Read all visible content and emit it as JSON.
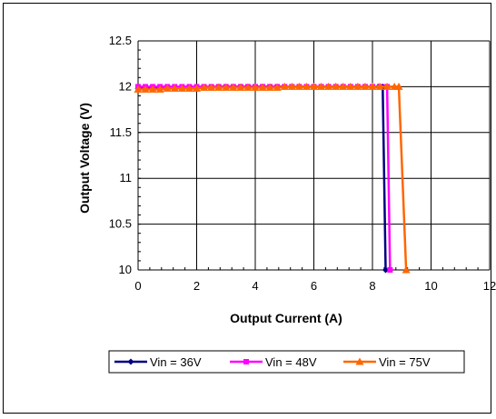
{
  "chart_data": {
    "type": "line",
    "title": "",
    "xlabel": "Output Current (A)",
    "ylabel": "Output Voltage (V)",
    "xlim": [
      0,
      12
    ],
    "ylim": [
      10,
      12.5
    ],
    "xticks": [
      0,
      2,
      4,
      6,
      8,
      10,
      12
    ],
    "yticks": [
      10,
      10.5,
      11,
      11.5,
      12,
      12.5
    ],
    "grid": "vertical and horizontal major gridlines",
    "legend_position": "bottom",
    "series": [
      {
        "name": "Vin = 36V",
        "color": "#000080",
        "marker": "diamond",
        "x": [
          0,
          0.25,
          0.5,
          0.75,
          1,
          1.25,
          1.5,
          1.75,
          2,
          2.25,
          2.5,
          2.75,
          3,
          3.25,
          3.5,
          3.75,
          4,
          4.25,
          4.5,
          4.75,
          5,
          5.25,
          5.5,
          5.75,
          6,
          6.25,
          6.5,
          6.75,
          7,
          7.25,
          7.5,
          7.75,
          8,
          8.2,
          8.35,
          8.45
        ],
        "y": [
          11.98,
          11.98,
          11.98,
          11.98,
          11.99,
          11.99,
          11.99,
          11.99,
          11.99,
          11.99,
          11.99,
          12.0,
          12.0,
          12.0,
          12.0,
          12.0,
          12.0,
          12.0,
          12.0,
          12.0,
          12.0,
          12.0,
          12.0,
          12.0,
          12.0,
          12.0,
          12.0,
          12.0,
          12.0,
          12.0,
          12.0,
          12.0,
          12.0,
          12.0,
          12.0,
          10.0
        ]
      },
      {
        "name": "Vin = 48V",
        "color": "#FF00FF",
        "marker": "square",
        "x": [
          0,
          0.25,
          0.5,
          0.75,
          1,
          1.25,
          1.5,
          1.75,
          2,
          2.25,
          2.5,
          2.75,
          3,
          3.25,
          3.5,
          3.75,
          4,
          4.25,
          4.5,
          4.75,
          5,
          5.25,
          5.5,
          5.75,
          6,
          6.25,
          6.5,
          6.75,
          7,
          7.25,
          7.5,
          7.75,
          8,
          8.25,
          8.5,
          8.6
        ],
        "y": [
          12.0,
          12.0,
          12.0,
          12.0,
          12.0,
          12.0,
          12.0,
          12.0,
          12.0,
          12.0,
          12.0,
          12.0,
          12.0,
          12.0,
          12.0,
          12.0,
          12.0,
          12.0,
          12.0,
          12.0,
          12.0,
          12.0,
          12.0,
          12.0,
          12.0,
          12.0,
          12.0,
          12.0,
          12.0,
          12.0,
          12.0,
          12.0,
          12.0,
          12.0,
          12.0,
          10.0
        ]
      },
      {
        "name": "Vin = 75V",
        "color": "#FF6600",
        "marker": "triangle",
        "x": [
          0,
          0.25,
          0.5,
          0.75,
          1,
          1.25,
          1.5,
          1.75,
          2,
          2.25,
          2.5,
          2.75,
          3,
          3.25,
          3.5,
          3.75,
          4,
          4.25,
          4.5,
          4.75,
          5,
          5.25,
          5.5,
          5.75,
          6,
          6.25,
          6.5,
          6.75,
          7,
          7.25,
          7.5,
          7.75,
          8,
          8.25,
          8.5,
          8.75,
          8.9,
          9.15
        ],
        "y": [
          11.97,
          11.97,
          11.97,
          11.97,
          11.98,
          11.98,
          11.98,
          11.98,
          11.98,
          11.99,
          11.99,
          11.99,
          11.99,
          11.99,
          11.99,
          11.99,
          11.99,
          11.99,
          11.99,
          11.99,
          12.0,
          12.0,
          12.0,
          12.0,
          12.0,
          12.0,
          12.0,
          12.0,
          12.0,
          12.0,
          12.0,
          12.0,
          12.0,
          12.0,
          12.0,
          12.0,
          12.0,
          10.0
        ]
      }
    ]
  }
}
